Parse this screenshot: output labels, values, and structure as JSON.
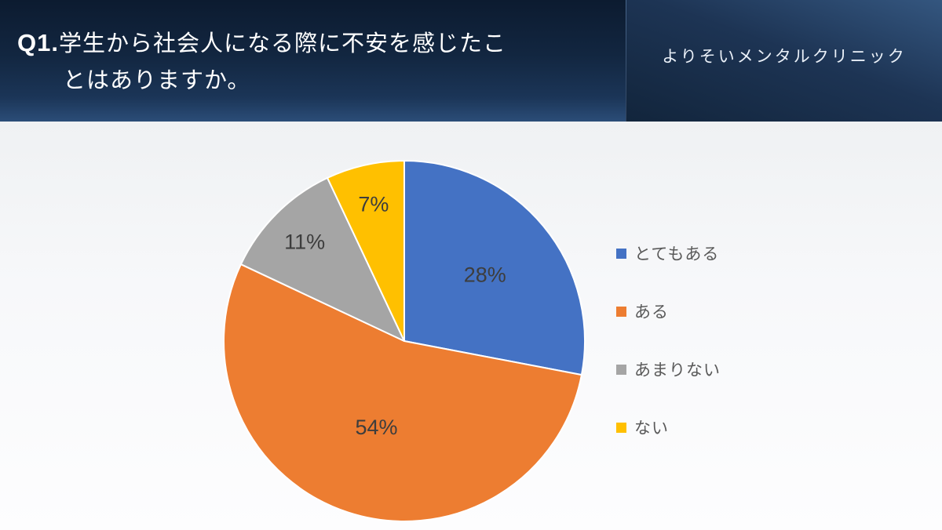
{
  "header": {
    "question": {
      "prefix": "Q1.",
      "line1": "学生から社会人になる際に不安を感じたこ",
      "line2": "とはありますか。"
    },
    "clinic_name": "よりそいメンタルクリニック"
  },
  "chart_data": {
    "type": "pie",
    "title": "Q1.学生から社会人になる際に不安を感じたことはありますか。",
    "legend_position": "right",
    "start_angle_deg": 0,
    "direction": "clockwise",
    "slices": [
      {
        "label": "とてもある",
        "value": 28,
        "data_label": "28%",
        "color": "#4472C4"
      },
      {
        "label": "ある",
        "value": 54,
        "data_label": "54%",
        "color": "#ED7D31"
      },
      {
        "label": "あまりない",
        "value": 11,
        "data_label": "11%",
        "color": "#A5A5A5"
      },
      {
        "label": "ない",
        "value": 7,
        "data_label": "7%",
        "color": "#FFC000"
      }
    ]
  }
}
